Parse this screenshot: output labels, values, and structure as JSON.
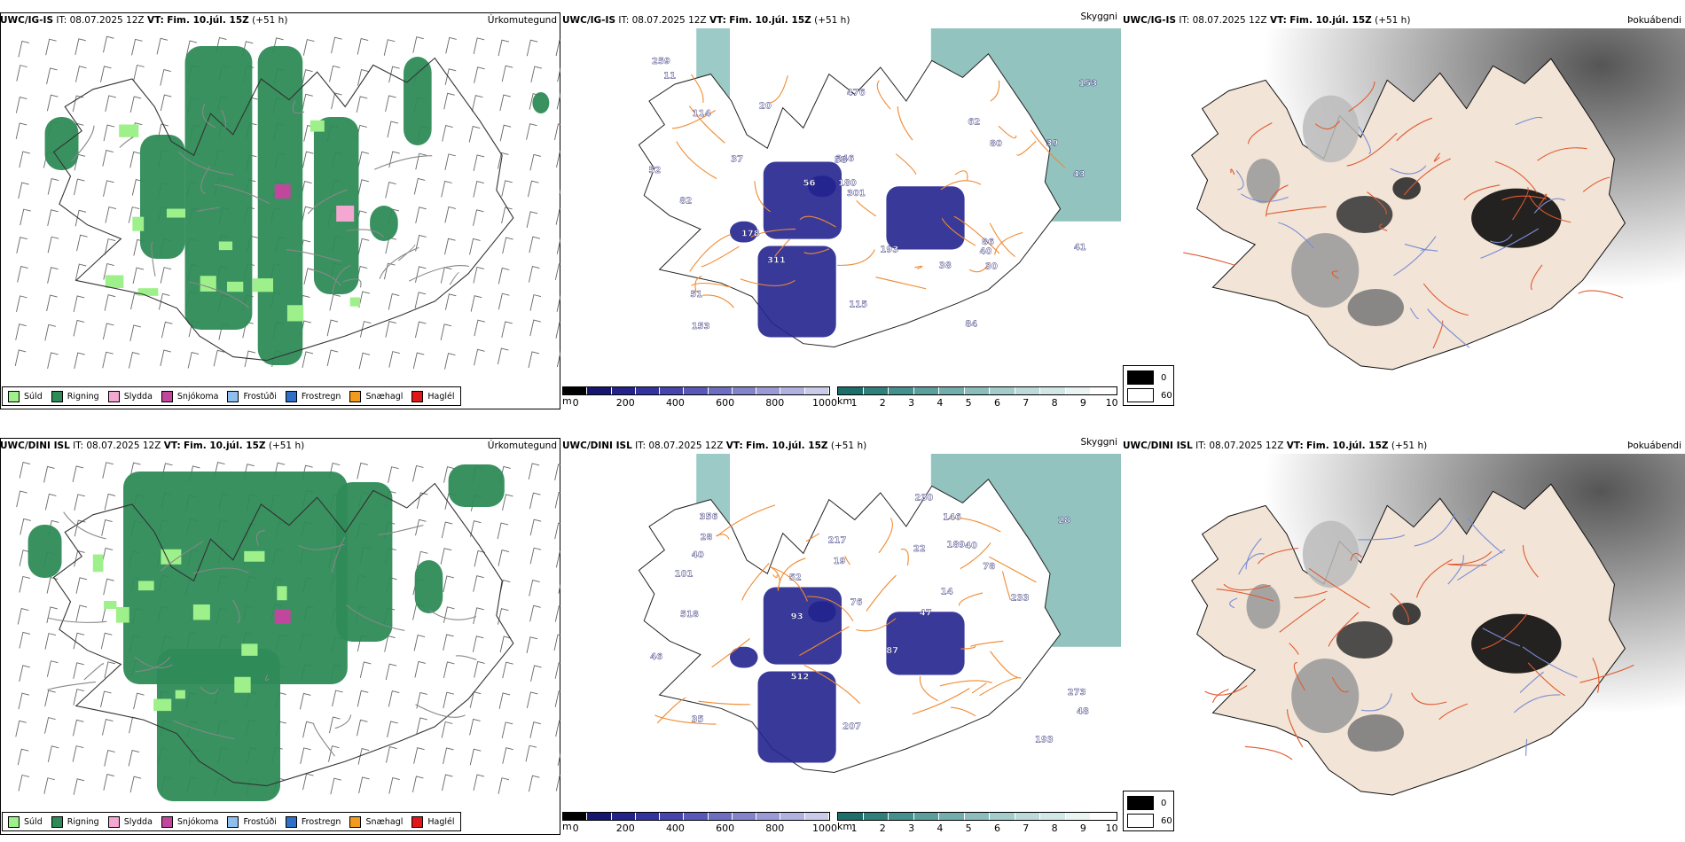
{
  "rows": [
    {
      "id": "top",
      "model": "UWC/IG-IS",
      "header": {
        "it_label": "IT:",
        "it_value": "08.07.2025 12Z",
        "vt_label": "VT:",
        "vt_value": "Fim. 10.júl. 15Z",
        "lead": "(+51 h)"
      },
      "panels": [
        {
          "title": "Úrkomutegund"
        },
        {
          "title": "Skyggni",
          "values": [
            "153",
            "246",
            "153",
            "476",
            "178",
            "259",
            "115",
            "114",
            "311",
            "301",
            "180",
            "82",
            "80",
            "193",
            "30",
            "40",
            "62",
            "38",
            "84",
            "56",
            "51",
            "52",
            "86",
            "58",
            "43",
            "20",
            "41",
            "39",
            "37",
            "11"
          ]
        },
        {
          "title": "Þokuábendi"
        }
      ]
    },
    {
      "id": "bottom",
      "model": "UWC/DINI ISL",
      "header": {
        "it_label": "IT:",
        "it_value": "08.07.2025 12Z",
        "vt_label": "VT:",
        "vt_value": "Fim. 10.júl. 15Z",
        "lead": "(+51 h)"
      },
      "panels": [
        {
          "title": "Úrkomutegund"
        },
        {
          "title": "Skyggni",
          "values": [
            "356",
            "22",
            "233",
            "230",
            "518",
            "207",
            "217",
            "512",
            "273",
            "193",
            "189",
            "14",
            "93",
            "76",
            "28",
            "40",
            "46",
            "101",
            "87",
            "146",
            "19",
            "48",
            "78",
            "52",
            "40",
            "47",
            "35",
            "28"
          ]
        },
        {
          "title": "Þokuábendi"
        }
      ]
    }
  ],
  "precip_legend": [
    {
      "label": "Súld",
      "color": "#9ef08a"
    },
    {
      "label": "Rigning",
      "color": "#2e8b57"
    },
    {
      "label": "Slydda",
      "color": "#f4a7d0"
    },
    {
      "label": "Snjókoma",
      "color": "#c0479d"
    },
    {
      "label": "Frostúði",
      "color": "#8fbfee"
    },
    {
      "label": "Frostregn",
      "color": "#2f6fc6"
    },
    {
      "label": "Snæhagl",
      "color": "#f29a1c"
    },
    {
      "label": "Haglél",
      "color": "#e01818"
    }
  ],
  "elev_bar": {
    "unit": "m",
    "ticks": [
      "0",
      "200",
      "400",
      "600",
      "800",
      "1000"
    ],
    "colors": [
      "#000000",
      "#16166e",
      "#22228a",
      "#3333a0",
      "#4545ad",
      "#5858b8",
      "#6d6dc2",
      "#8383cc",
      "#9a9ad6",
      "#b2b2e0",
      "#cacaea"
    ]
  },
  "vis_bar": {
    "unit": "km",
    "ticks": [
      "1",
      "2",
      "3",
      "4",
      "5",
      "6",
      "7",
      "8",
      "9",
      "10"
    ],
    "colors": [
      "#1b6e6a",
      "#2f7f7b",
      "#43908c",
      "#5a9f9c",
      "#72aeab",
      "#8bbdba",
      "#a3ccca",
      "#bbdad8",
      "#d2e8e7",
      "#e9f4f3",
      "#ffffff"
    ]
  },
  "fog_legend": {
    "high": "0",
    "low": "60"
  },
  "colors": {
    "land": "#f2e4d6",
    "road": "#f08a30",
    "river": "#7a8cd6",
    "rain": "#2e8b57"
  }
}
